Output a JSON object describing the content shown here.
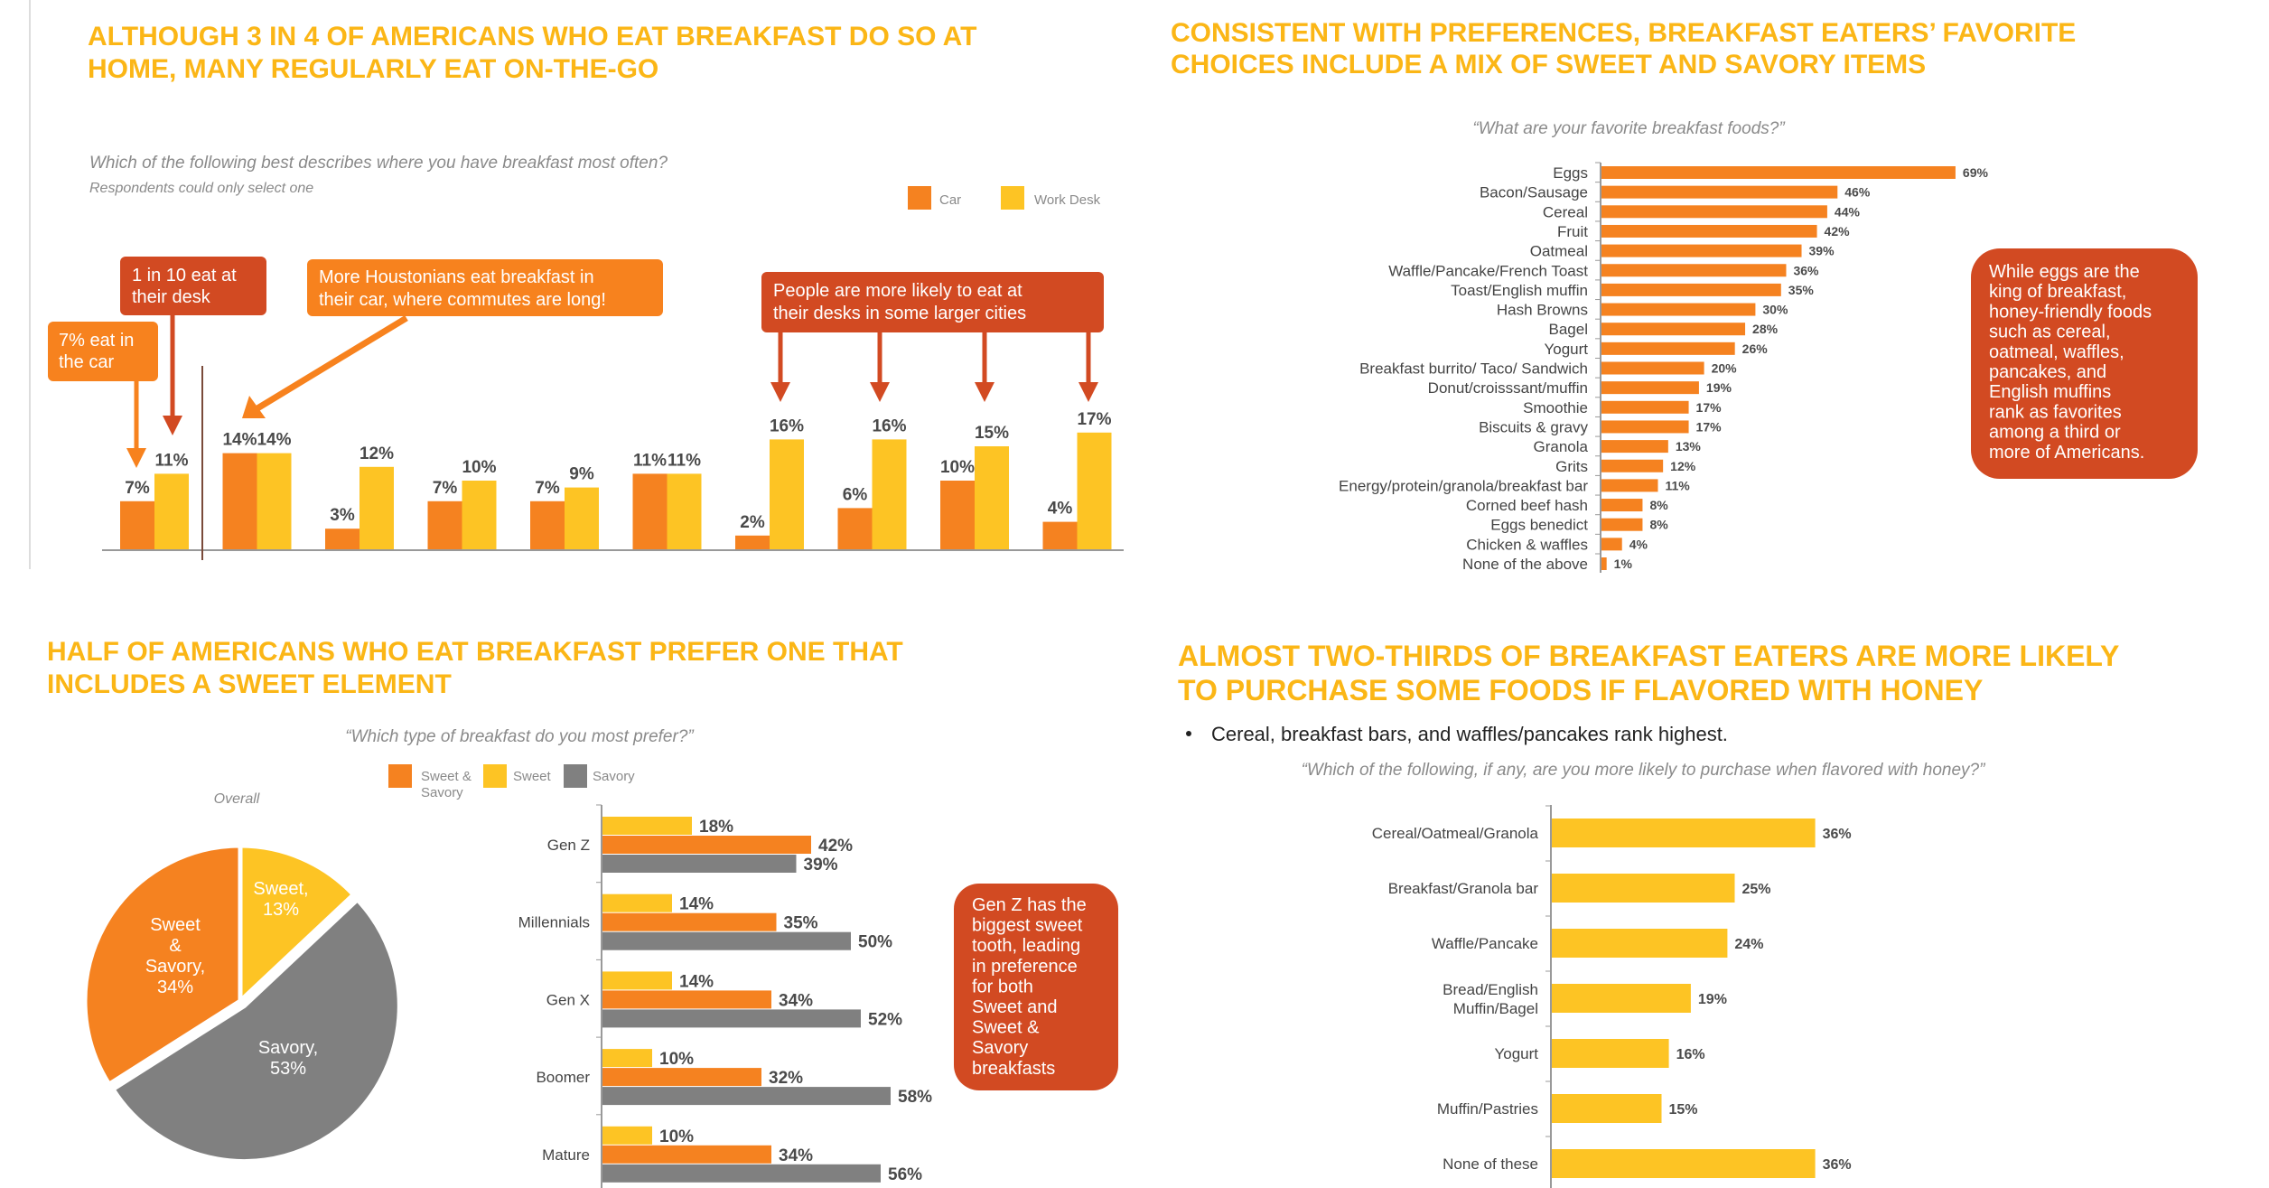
{
  "colors": {
    "car": "#F58220",
    "desk": "#FDC424",
    "sweet_savory": "#F58220",
    "sweet": "#FDC424",
    "savory": "#808080",
    "callout_dark": "#D24A22",
    "callout_orange": "#F7821E",
    "headline": "#FBB616"
  },
  "top_left": {
    "title_lines": [
      "ALTHOUGH 3 IN 4 OF AMERICANS WHO EAT BREAKFAST DO SO AT",
      "HOME, MANY REGULARLY EAT ON-THE-GO"
    ],
    "question": "Which of the following best describes where you have breakfast most often?",
    "note": "Respondents could only select one",
    "legend": [
      "Car",
      "Work Desk"
    ],
    "callouts": {
      "car": [
        "7% eat in",
        "the car"
      ],
      "desk": [
        "1 in 10 eat at",
        "their desk"
      ],
      "houston": [
        "More Houstonians eat breakfast in",
        "their car, where commutes are long!"
      ],
      "cities": [
        "People are more likely to eat at",
        "their desks in some larger cities"
      ]
    }
  },
  "top_right": {
    "title_lines": [
      "CONSISTENT WITH PREFERENCES, BREAKFAST EATERS’ FAVORITE",
      "CHOICES INCLUDE A MIX OF SWEET AND SAVORY ITEMS"
    ],
    "question": "“What are your favorite breakfast foods?”",
    "callout": [
      "While eggs are the",
      "king of breakfast,",
      "honey-friendly foods",
      "such as cereal,",
      "oatmeal, waffles,",
      "pancakes, and",
      "English muffins",
      "rank as favorites",
      "among a third or",
      "more of Americans."
    ]
  },
  "bottom_left": {
    "title_lines": [
      "HALF OF AMERICANS WHO EAT BREAKFAST PREFER ONE THAT",
      "INCLUDES A SWEET ELEMENT"
    ],
    "question": "“Which type of breakfast do you most prefer?”",
    "legend": [
      [
        "Sweet &",
        "Savory"
      ],
      [
        "Sweet"
      ],
      [
        "Savory"
      ]
    ],
    "pie_title": "Overall",
    "pie_labels": {
      "sweet": [
        "Sweet,",
        "13%"
      ],
      "sweet_savory": [
        "Sweet",
        "&",
        "Savory,",
        "34%"
      ],
      "savory": [
        "Savory,",
        "53%"
      ]
    },
    "callout": [
      "Gen Z has the",
      "biggest sweet",
      "tooth, leading",
      "in preference",
      "for both",
      "Sweet and",
      "Sweet &",
      "Savory",
      "breakfasts"
    ]
  },
  "bottom_right": {
    "title_lines": [
      "ALMOST TWO-THIRDS OF BREAKFAST EATERS ARE MORE LIKELY",
      "TO PURCHASE SOME FOODS IF FLAVORED WITH HONEY"
    ],
    "bullet": "Cereal, breakfast bars, and waffles/pancakes rank highest.",
    "question": "“Which of the following, if any, are you more likely to purchase when flavored with honey?”"
  },
  "chart_data": [
    {
      "type": "bar",
      "orientation": "vertical",
      "series": [
        {
          "name": "Car",
          "values": [
            7,
            14,
            3,
            7,
            7,
            11,
            2,
            6,
            10,
            4
          ]
        },
        {
          "name": "Work Desk",
          "values": [
            11,
            14,
            12,
            10,
            9,
            11,
            16,
            16,
            15,
            17
          ]
        }
      ],
      "value_labels": true,
      "ylim": [
        0,
        20
      ],
      "grid": false,
      "legend": "top-right"
    },
    {
      "type": "bar",
      "orientation": "horizontal",
      "categories": [
        "Eggs",
        "Bacon/Sausage",
        "Cereal",
        "Fruit",
        "Oatmeal",
        "Waffle/Pancake/French Toast",
        "Toast/English muffin",
        "Hash Browns",
        "Bagel",
        "Yogurt",
        "Breakfast burrito/ Taco/ Sandwich",
        "Donut/croisssant/muffin",
        "Smoothie",
        "Biscuits & gravy",
        "Granola",
        "Grits",
        "Energy/protein/granola/breakfast bar",
        "Corned beef hash",
        "Eggs benedict",
        "Chicken & waffles",
        "None of the above"
      ],
      "values": [
        69,
        46,
        44,
        42,
        39,
        36,
        35,
        30,
        28,
        26,
        20,
        19,
        17,
        17,
        13,
        12,
        11,
        8,
        8,
        4,
        1
      ],
      "unit": "%",
      "grid": false
    },
    {
      "type": "pie",
      "title": "Overall",
      "categories": [
        "Sweet",
        "Savory",
        "Sweet & Savory"
      ],
      "values": [
        13,
        53,
        34
      ]
    },
    {
      "type": "bar",
      "orientation": "horizontal",
      "categories": [
        "Gen Z",
        "Millennials",
        "Gen X",
        "Boomer",
        "Mature"
      ],
      "series": [
        {
          "name": "Sweet",
          "values": [
            18,
            14,
            14,
            10,
            10
          ]
        },
        {
          "name": "Sweet & Savory",
          "values": [
            42,
            35,
            34,
            32,
            34
          ]
        },
        {
          "name": "Savory",
          "values": [
            39,
            50,
            52,
            58,
            56
          ]
        }
      ],
      "unit": "%",
      "legend": "top"
    },
    {
      "type": "bar",
      "orientation": "horizontal",
      "categories": [
        "Cereal/Oatmeal/Granola",
        "Breakfast/Granola bar",
        "Waffle/Pancake",
        "Bread/English Muffin/Bagel",
        "Yogurt",
        "Muffin/Pastries",
        "None of these"
      ],
      "values": [
        36,
        25,
        24,
        19,
        16,
        15,
        36
      ],
      "unit": "%"
    }
  ]
}
